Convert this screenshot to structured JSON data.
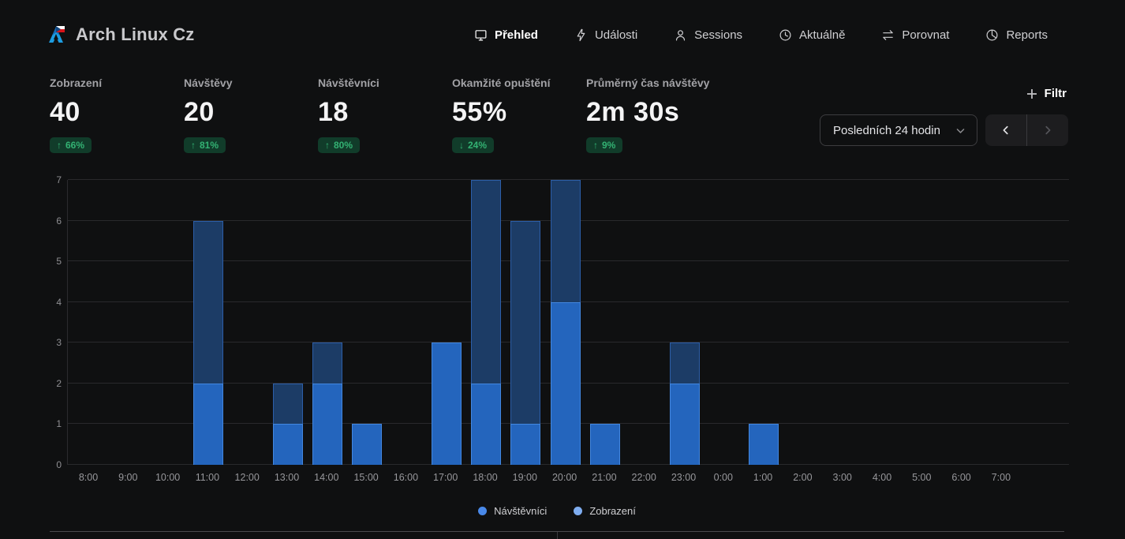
{
  "app": {
    "title": "Arch Linux Cz"
  },
  "nav": {
    "items": [
      {
        "label": "Přehled",
        "icon": "monitor-icon",
        "active": true
      },
      {
        "label": "Události",
        "icon": "lightning-icon",
        "active": false
      },
      {
        "label": "Sessions",
        "icon": "user-icon",
        "active": false
      },
      {
        "label": "Aktuálně",
        "icon": "clock-icon",
        "active": false
      },
      {
        "label": "Porovnat",
        "icon": "compare-arrows-icon",
        "active": false
      },
      {
        "label": "Reports",
        "icon": "pie-chart-icon",
        "active": false
      }
    ]
  },
  "stats": [
    {
      "label": "Zobrazení",
      "value": "40",
      "arrow": "↑",
      "change": "66%"
    },
    {
      "label": "Návštěvy",
      "value": "20",
      "arrow": "↑",
      "change": "81%"
    },
    {
      "label": "Návštěvníci",
      "value": "18",
      "arrow": "↑",
      "change": "80%"
    },
    {
      "label": "Okamžité opuštění",
      "value": "55%",
      "arrow": "↓",
      "change": "24%"
    },
    {
      "label": "Průměrný čas návštěvy",
      "value": "2m 30s",
      "arrow": "↑",
      "change": "9%"
    }
  ],
  "toolbar": {
    "filter_label": "Filtr",
    "date_range": "Posledních 24 hodin"
  },
  "chart_data": {
    "type": "bar",
    "categories": [
      "8:00",
      "9:00",
      "10:00",
      "11:00",
      "12:00",
      "13:00",
      "14:00",
      "15:00",
      "16:00",
      "17:00",
      "18:00",
      "19:00",
      "20:00",
      "21:00",
      "22:00",
      "23:00",
      "0:00",
      "1:00",
      "2:00",
      "3:00",
      "4:00",
      "5:00",
      "6:00",
      "7:00"
    ],
    "series": [
      {
        "name": "Zobrazení",
        "values": [
          0,
          0,
          0,
          6,
          0,
          2,
          3,
          1,
          0,
          3,
          7,
          6,
          7,
          1,
          0,
          3,
          0,
          1,
          0,
          0,
          0,
          0,
          0,
          0
        ],
        "fill": "#1c3c66",
        "border": "#2c5ea8"
      },
      {
        "name": "Návštěvníci",
        "values": [
          0,
          0,
          0,
          2,
          0,
          1,
          2,
          1,
          0,
          3,
          2,
          1,
          4,
          1,
          0,
          2,
          0,
          1,
          0,
          0,
          0,
          0,
          0,
          0
        ],
        "fill": "#2465bd",
        "border": "#4287e0"
      }
    ],
    "title": "",
    "xlabel": "",
    "ylabel": "",
    "ylim": [
      0,
      7
    ],
    "yticks": [
      0,
      1,
      2,
      3,
      4,
      5,
      6,
      7
    ],
    "grid": true,
    "legend_position": "bottom"
  },
  "legend": [
    {
      "label": "Návštěvníci",
      "color": "#4989e9"
    },
    {
      "label": "Zobrazení",
      "color": "#7fadf0"
    }
  ],
  "colors": {
    "badge_bg": "#113c2a",
    "badge_fg": "#33b273",
    "accent_blue": "#2465bd"
  }
}
